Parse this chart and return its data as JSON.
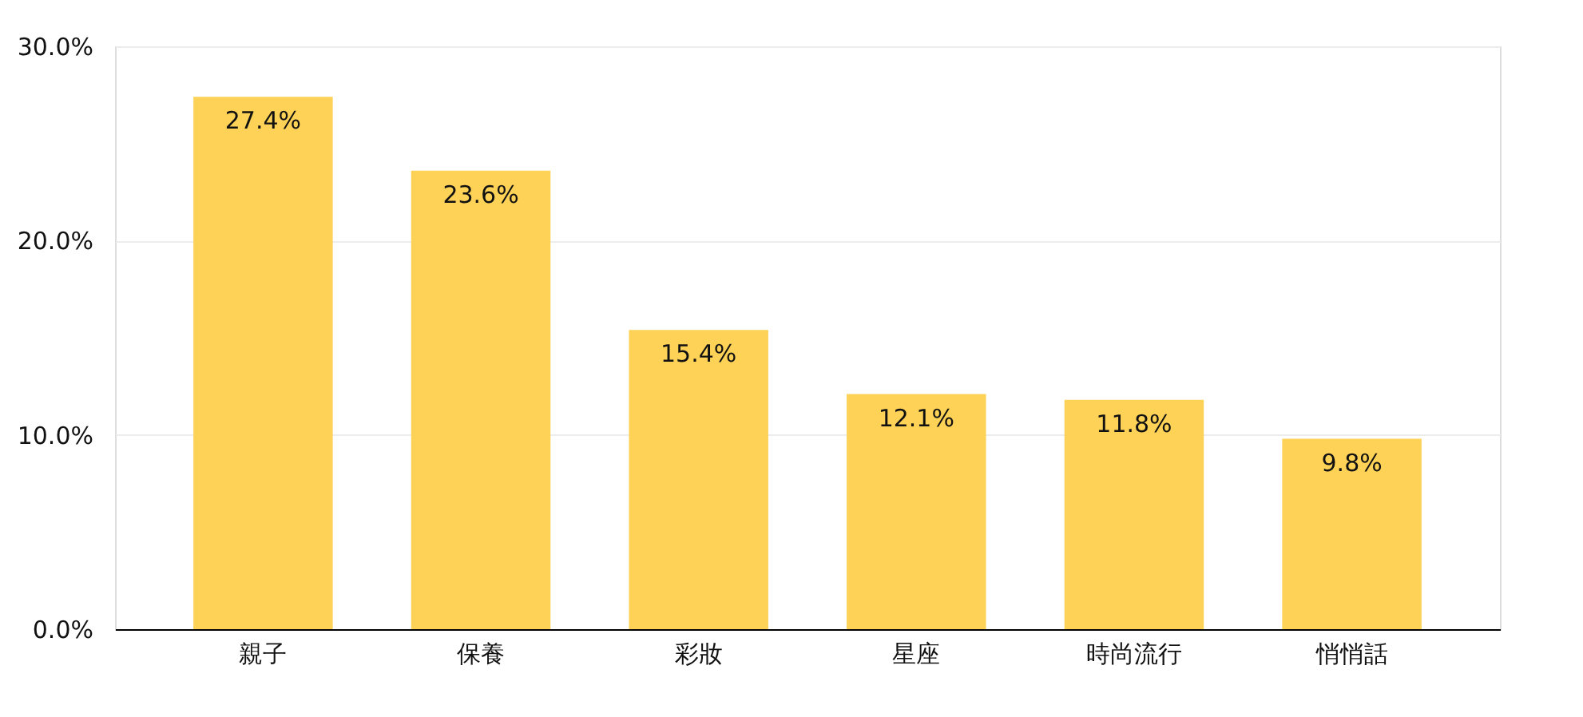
{
  "chart_data": {
    "type": "bar",
    "categories": [
      "親子",
      "保養",
      "彩妝",
      "星座",
      "時尚流行",
      "悄悄話"
    ],
    "values": [
      27.4,
      23.6,
      15.4,
      12.1,
      11.8,
      9.8
    ],
    "color": "#fdd257",
    "value_labels": [
      "27.4%",
      "23.6%",
      "15.4%",
      "12.1%",
      "11.8%",
      "9.8%"
    ],
    "ylim": [
      0,
      30
    ],
    "yticks": [
      {
        "value": 0,
        "label": "0.0%"
      },
      {
        "value": 10,
        "label": "10.0%"
      },
      {
        "value": 20,
        "label": "20.0%"
      },
      {
        "value": 30,
        "label": "30.0%"
      }
    ],
    "grid": "y"
  }
}
